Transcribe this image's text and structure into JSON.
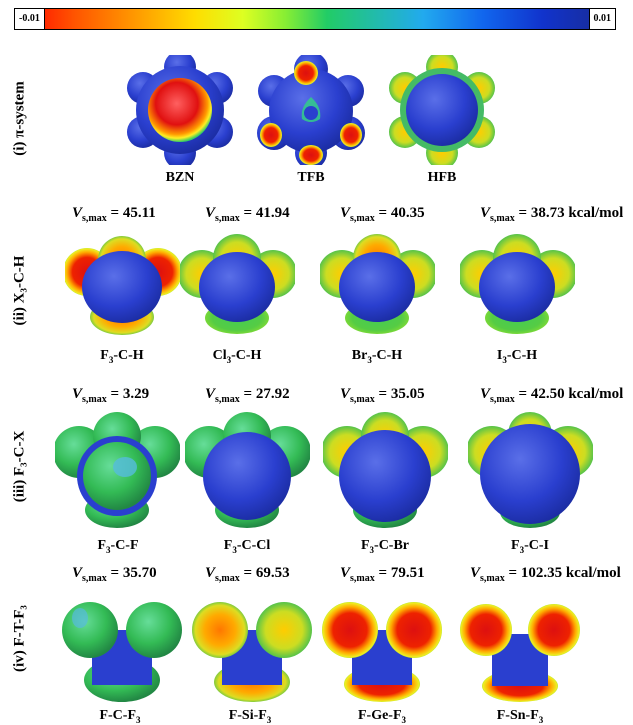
{
  "scale": {
    "min": "-0.01",
    "max": "0.01"
  },
  "rows": [
    {
      "label": "(i) π-system",
      "molecules": [
        {
          "name": "BZN"
        },
        {
          "name": "TFB"
        },
        {
          "name": "HFB"
        }
      ]
    },
    {
      "label": "(ii) X₃-C-H",
      "molecules": [
        {
          "vs_value": "45.11",
          "formula_parts": [
            "F",
            "3",
            "-C-H"
          ]
        },
        {
          "vs_value": "41.94",
          "formula_parts": [
            "Cl",
            "3",
            "-C-H"
          ]
        },
        {
          "vs_value": "40.35",
          "formula_parts": [
            "Br",
            "3",
            "-C-H"
          ]
        },
        {
          "vs_value": "38.73 kcal/mol",
          "formula_parts": [
            "I",
            "3",
            "-C-H"
          ]
        }
      ]
    },
    {
      "label": "(iii) F₃-C-X",
      "molecules": [
        {
          "vs_value": "3.29",
          "formula_parts": [
            "F",
            "3",
            "-C-F"
          ]
        },
        {
          "vs_value": "27.92",
          "formula_parts": [
            "F",
            "3",
            "-C-Cl"
          ]
        },
        {
          "vs_value": "35.05",
          "formula_parts": [
            "F",
            "3",
            "-C-Br"
          ]
        },
        {
          "vs_value": "42.50 kcal/mol",
          "formula_parts": [
            "F",
            "3",
            "-C-I"
          ]
        }
      ]
    },
    {
      "label": "(iv) F-T-F₃",
      "molecules": [
        {
          "vs_value": "35.70",
          "formula_parts": [
            "F-C-F",
            "3",
            ""
          ]
        },
        {
          "vs_value": "69.53",
          "formula_parts": [
            "F-Si-F",
            "3",
            ""
          ]
        },
        {
          "vs_value": "79.51",
          "formula_parts": [
            "F-Ge-F",
            "3",
            ""
          ]
        },
        {
          "vs_value": "102.35 kcal/mol",
          "formula_parts": [
            "F-Sn-F",
            "3",
            ""
          ]
        }
      ]
    }
  ],
  "vs_symbol": {
    "v": "V",
    "sub": "s,max",
    "eq": "= "
  }
}
